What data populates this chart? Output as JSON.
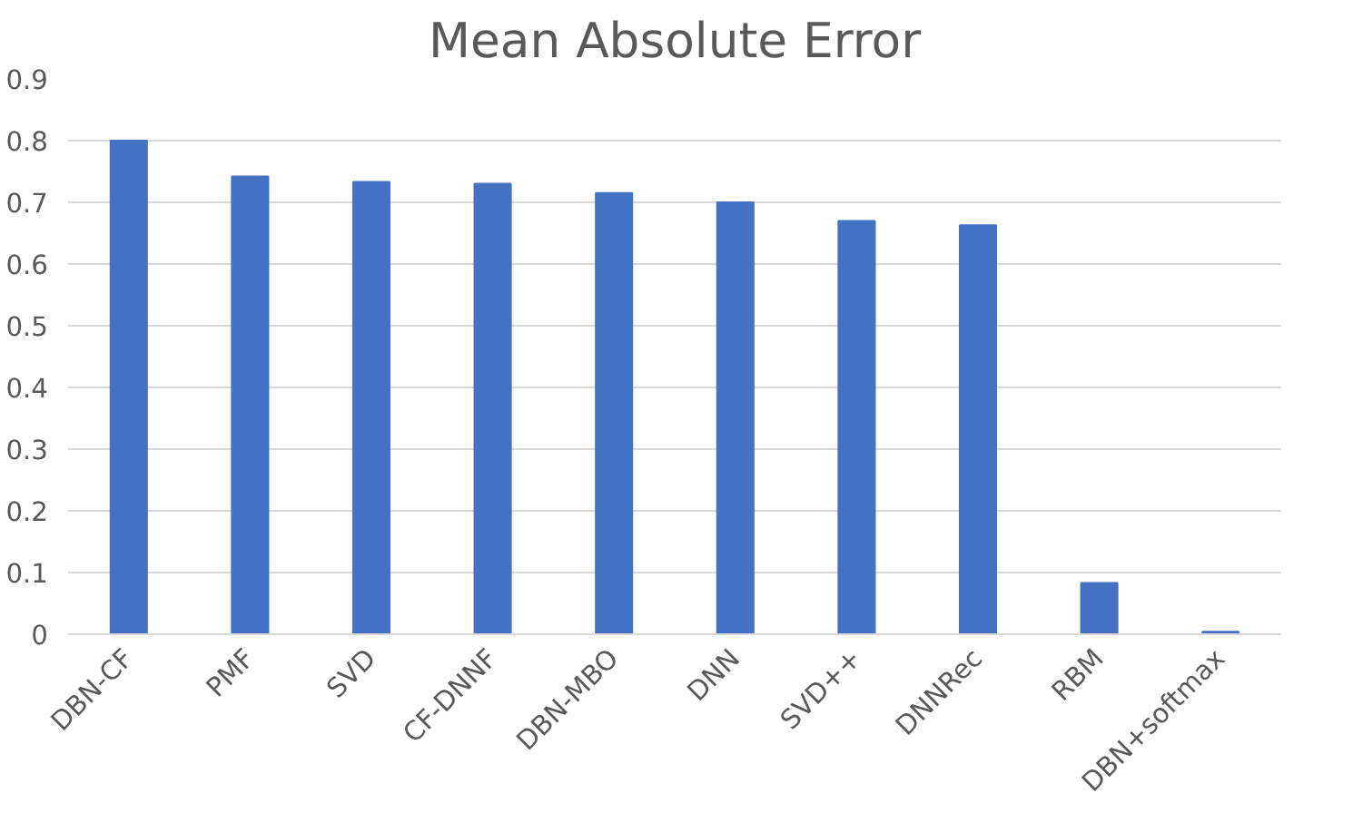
{
  "chart_data": {
    "type": "bar",
    "title": "Mean Absolute Error",
    "categories": [
      "DBN-CF",
      "PMF",
      "SVD",
      "CF-DNNF",
      "DBN-MBO",
      "DNN",
      "SVD++",
      "DNNRec",
      "RBM",
      "DBN+softmax"
    ],
    "values": [
      0.8,
      0.742,
      0.733,
      0.73,
      0.715,
      0.7,
      0.67,
      0.663,
      0.083,
      0.004
    ],
    "color": "#4472c4",
    "ylim": [
      0,
      0.9
    ],
    "yticks": [
      0,
      0.1,
      0.2,
      0.3,
      0.4,
      0.5,
      0.6,
      0.7,
      0.8,
      0.9
    ],
    "grid": "y"
  }
}
